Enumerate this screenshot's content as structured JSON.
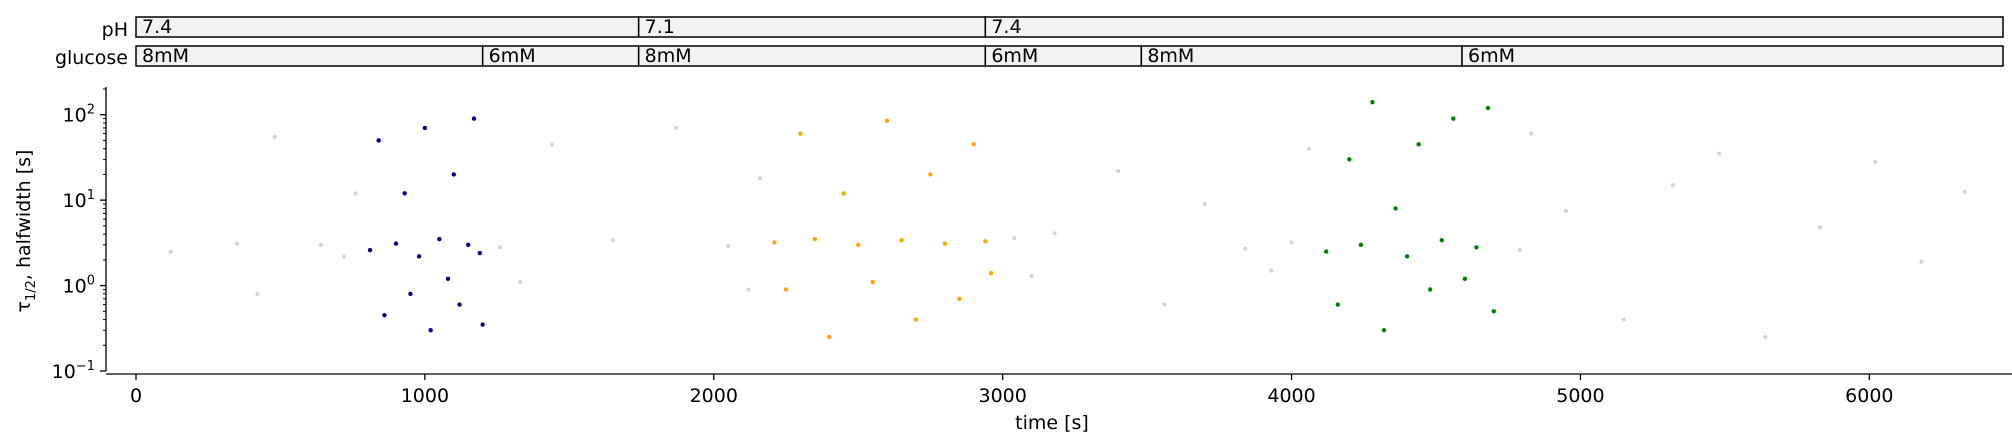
{
  "chart_data": [
    {
      "type": "table",
      "rows": [
        {
          "label": "pH",
          "segments": [
            {
              "label": "7.4",
              "start": 0,
              "end": 1740
            },
            {
              "label": "7.1",
              "start": 1740,
              "end": 2940
            },
            {
              "label": "7.4",
              "start": 2940,
              "end": 6480
            }
          ]
        },
        {
          "label": "glucose",
          "segments": [
            {
              "label": "8mM",
              "start": 0,
              "end": 1200
            },
            {
              "label": "6mM",
              "start": 1200,
              "end": 1740
            },
            {
              "label": "8mM",
              "start": 1740,
              "end": 2940
            },
            {
              "label": "6mM",
              "start": 2940,
              "end": 3480
            },
            {
              "label": "8mM",
              "start": 3480,
              "end": 4590
            },
            {
              "label": "6mM",
              "start": 4590,
              "end": 6480
            }
          ]
        }
      ]
    },
    {
      "type": "scatter",
      "xlabel": "time [s]",
      "ylabel": "τ",
      "ylabel_sub": "1/2",
      "ylabel_suffix": ", halfwidth [s]",
      "xlim": [
        0,
        6480
      ],
      "ylim": [
        0.1,
        200
      ],
      "yscale": "log",
      "xticks": [
        0,
        1000,
        2000,
        3000,
        4000,
        5000,
        6000
      ],
      "yticks": [
        {
          "value": 0.1,
          "base": "10",
          "exp": "−1"
        },
        {
          "value": 1,
          "base": "10",
          "exp": "0"
        },
        {
          "value": 10,
          "base": "10",
          "exp": "1"
        },
        {
          "value": 100,
          "base": "10",
          "exp": "2"
        }
      ],
      "grid": false,
      "background_color": "#d3d3d3",
      "background_points": [
        [
          120,
          2.5
        ],
        [
          350,
          3.1
        ],
        [
          420,
          0.8
        ],
        [
          480,
          55.0
        ],
        [
          640,
          3.0
        ],
        [
          720,
          2.2
        ],
        [
          760,
          12.0
        ],
        [
          1260,
          2.8
        ],
        [
          1330,
          1.1
        ],
        [
          1440,
          45.0
        ],
        [
          1650,
          3.4
        ],
        [
          1870,
          70.0
        ],
        [
          2050,
          2.9
        ],
        [
          2120,
          0.9
        ],
        [
          2160,
          18.0
        ],
        [
          3040,
          3.6
        ],
        [
          3100,
          1.3
        ],
        [
          3180,
          4.1
        ],
        [
          3400,
          22.0
        ],
        [
          3560,
          0.6
        ],
        [
          3700,
          9.0
        ],
        [
          3840,
          2.7
        ],
        [
          3930,
          1.5
        ],
        [
          4000,
          3.2
        ],
        [
          4060,
          40.0
        ],
        [
          4790,
          2.6
        ],
        [
          4830,
          60.0
        ],
        [
          4950,
          7.5
        ],
        [
          5150,
          0.4
        ],
        [
          5320,
          15.0
        ],
        [
          5480,
          35.0
        ],
        [
          5640,
          0.25
        ],
        [
          5830,
          4.8
        ],
        [
          6020,
          28.0
        ],
        [
          6180,
          1.9
        ],
        [
          6330,
          12.5
        ]
      ],
      "series": [
        {
          "color": "#00008b",
          "points": [
            [
              810,
              2.6
            ],
            [
              840,
              50.0
            ],
            [
              860,
              0.45
            ],
            [
              900,
              3.1
            ],
            [
              930,
              12.0
            ],
            [
              950,
              0.8
            ],
            [
              980,
              2.2
            ],
            [
              1000,
              70.0
            ],
            [
              1020,
              0.3
            ],
            [
              1050,
              3.5
            ],
            [
              1080,
              1.2
            ],
            [
              1100,
              20.0
            ],
            [
              1120,
              0.6
            ],
            [
              1150,
              3.0
            ],
            [
              1170,
              90.0
            ],
            [
              1190,
              2.4
            ],
            [
              1200,
              0.35
            ]
          ]
        },
        {
          "color": "#ffa500",
          "points": [
            [
              2210,
              3.2
            ],
            [
              2250,
              0.9
            ],
            [
              2300,
              60.0
            ],
            [
              2350,
              3.5
            ],
            [
              2400,
              0.25
            ],
            [
              2450,
              12.0
            ],
            [
              2500,
              3.0
            ],
            [
              2550,
              1.1
            ],
            [
              2600,
              85.0
            ],
            [
              2650,
              3.4
            ],
            [
              2700,
              0.4
            ],
            [
              2750,
              20.0
            ],
            [
              2800,
              3.1
            ],
            [
              2850,
              0.7
            ],
            [
              2900,
              45.0
            ],
            [
              2940,
              3.3
            ],
            [
              2960,
              1.4
            ]
          ]
        },
        {
          "color": "#008000",
          "points": [
            [
              4120,
              2.5
            ],
            [
              4160,
              0.6
            ],
            [
              4200,
              30.0
            ],
            [
              4240,
              3.0
            ],
            [
              4280,
              140.0
            ],
            [
              4320,
              0.3
            ],
            [
              4360,
              8.0
            ],
            [
              4400,
              2.2
            ],
            [
              4440,
              45.0
            ],
            [
              4480,
              0.9
            ],
            [
              4520,
              3.4
            ],
            [
              4560,
              90.0
            ],
            [
              4600,
              1.2
            ],
            [
              4640,
              2.8
            ],
            [
              4680,
              120.0
            ],
            [
              4700,
              0.5
            ]
          ]
        }
      ]
    }
  ]
}
